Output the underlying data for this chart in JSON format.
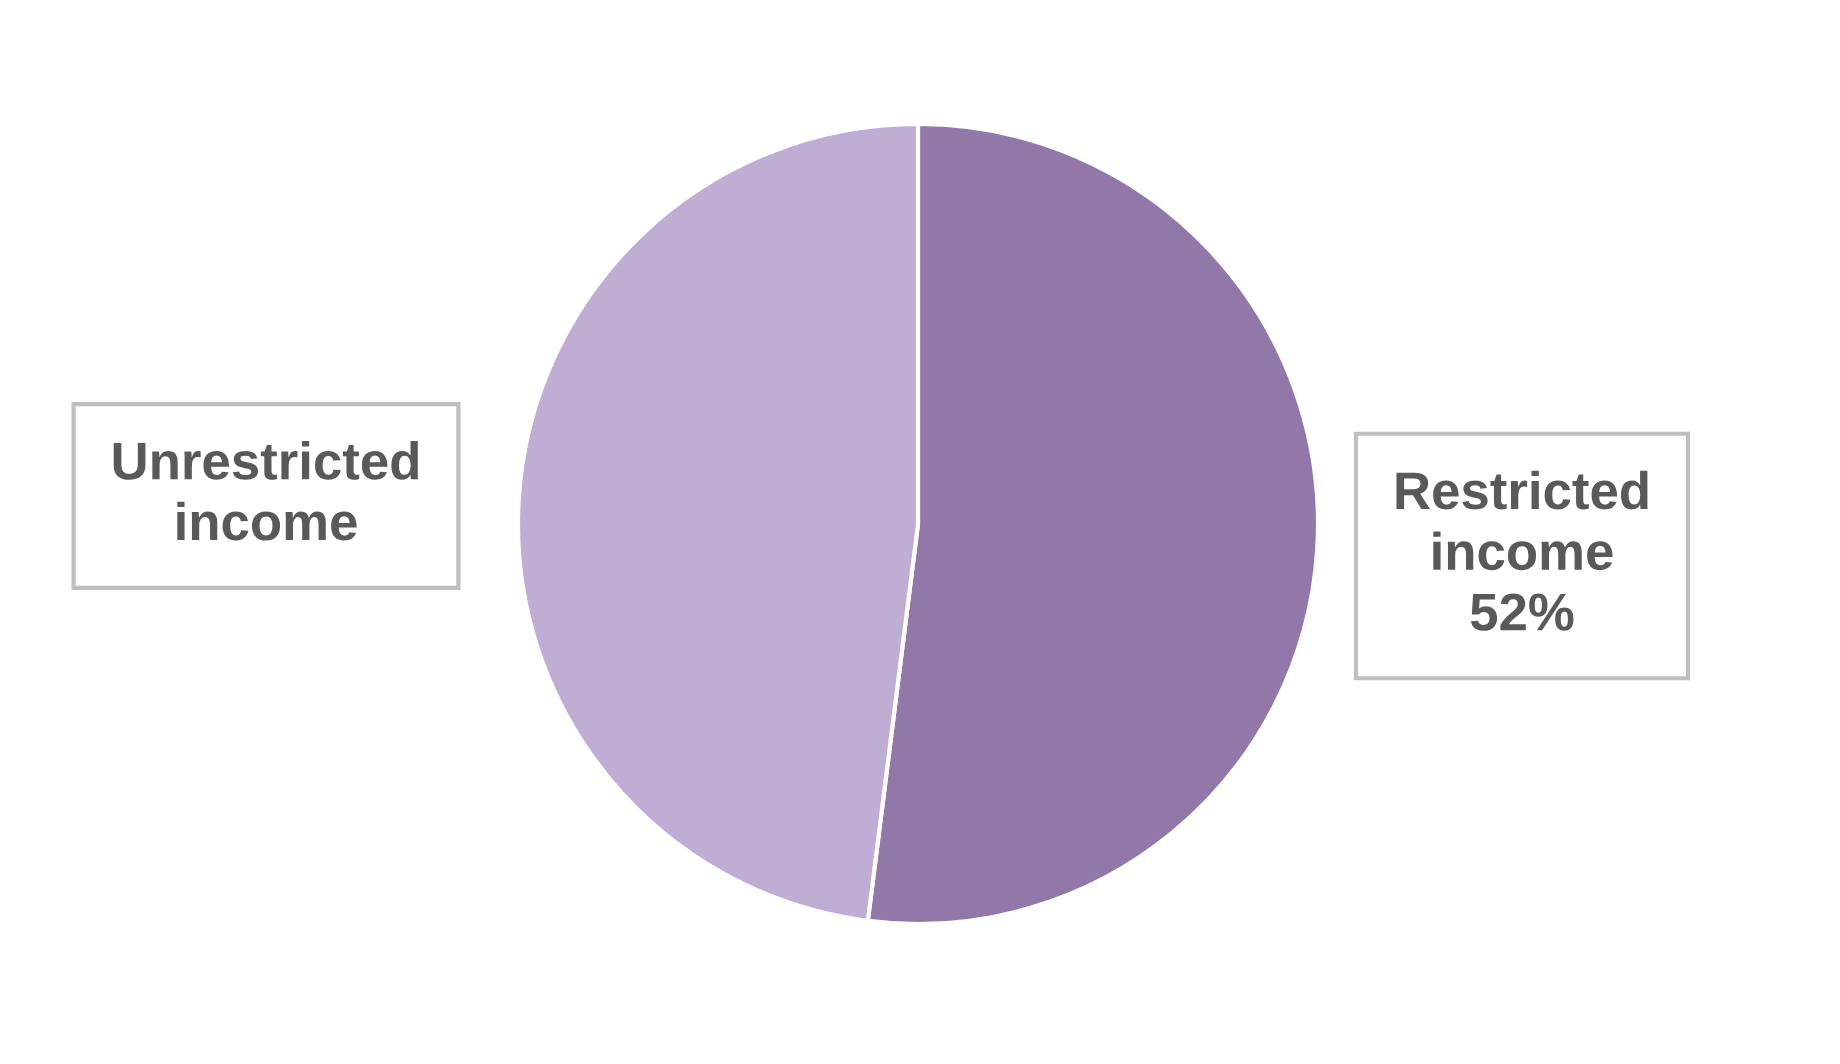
{
  "chart_data": {
    "type": "pie",
    "categories": [
      "Restricted income",
      "Unrestricted income"
    ],
    "values": [
      52,
      48
    ],
    "colors": [
      "#9278a9",
      "#bfadd3"
    ],
    "value_labels": [
      "52%",
      null
    ],
    "legend": false
  }
}
